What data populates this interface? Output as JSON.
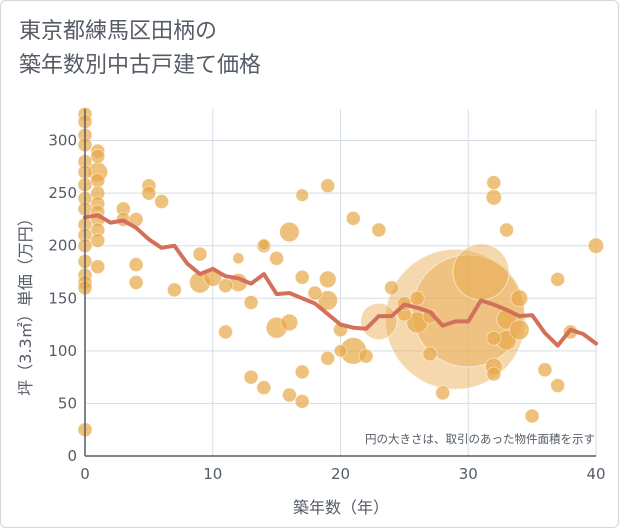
{
  "title_line1": "東京都練馬区田柄の",
  "title_line2": "築年数別中古戸建て価格",
  "annotation": "円の大きさは、取引のあった物件面積を示す",
  "colors": {
    "bubble": "#e8a94b",
    "line": "#d3705a",
    "grid": "#d5dde5",
    "axis": "#555c66"
  },
  "chart_data": {
    "type": "scatter",
    "xlabel": "築年数（年）",
    "ylabel": "坪（3.3㎡）単価（万円）",
    "xlim": [
      0,
      40
    ],
    "ylim": [
      0,
      330
    ],
    "xticks": [
      0,
      10,
      20,
      30,
      40
    ],
    "yticks": [
      0,
      50,
      100,
      150,
      200,
      250,
      300
    ],
    "grid": true,
    "bubbles": [
      {
        "x": 0,
        "y": 325,
        "s": 1
      },
      {
        "x": 0,
        "y": 318,
        "s": 1
      },
      {
        "x": 0,
        "y": 305,
        "s": 1
      },
      {
        "x": 0,
        "y": 296,
        "s": 1
      },
      {
        "x": 0,
        "y": 280,
        "s": 1
      },
      {
        "x": 0,
        "y": 270,
        "s": 1
      },
      {
        "x": 0,
        "y": 258,
        "s": 1
      },
      {
        "x": 0,
        "y": 245,
        "s": 1
      },
      {
        "x": 0,
        "y": 235,
        "s": 1
      },
      {
        "x": 0,
        "y": 220,
        "s": 1
      },
      {
        "x": 0,
        "y": 210,
        "s": 1
      },
      {
        "x": 0,
        "y": 200,
        "s": 1
      },
      {
        "x": 0,
        "y": 185,
        "s": 1
      },
      {
        "x": 0,
        "y": 172,
        "s": 1
      },
      {
        "x": 0,
        "y": 165,
        "s": 1
      },
      {
        "x": 0,
        "y": 160,
        "s": 1
      },
      {
        "x": 0,
        "y": 25,
        "s": 1
      },
      {
        "x": 1,
        "y": 290,
        "s": 1
      },
      {
        "x": 1,
        "y": 285,
        "s": 1
      },
      {
        "x": 1,
        "y": 270,
        "s": 1.4
      },
      {
        "x": 1,
        "y": 262,
        "s": 1
      },
      {
        "x": 1,
        "y": 250,
        "s": 1
      },
      {
        "x": 1,
        "y": 240,
        "s": 1
      },
      {
        "x": 1,
        "y": 232,
        "s": 1
      },
      {
        "x": 1,
        "y": 225,
        "s": 1
      },
      {
        "x": 1,
        "y": 215,
        "s": 1
      },
      {
        "x": 1,
        "y": 205,
        "s": 1
      },
      {
        "x": 1,
        "y": 180,
        "s": 1
      },
      {
        "x": 3,
        "y": 235,
        "s": 1
      },
      {
        "x": 3,
        "y": 225,
        "s": 1
      },
      {
        "x": 4,
        "y": 225,
        "s": 1
      },
      {
        "x": 4,
        "y": 182,
        "s": 1
      },
      {
        "x": 4,
        "y": 165,
        "s": 1
      },
      {
        "x": 5,
        "y": 257,
        "s": 1
      },
      {
        "x": 5,
        "y": 250,
        "s": 1
      },
      {
        "x": 6,
        "y": 242,
        "s": 1
      },
      {
        "x": 7,
        "y": 158,
        "s": 1
      },
      {
        "x": 9,
        "y": 192,
        "s": 1
      },
      {
        "x": 9,
        "y": 165,
        "s": 1.5
      },
      {
        "x": 10,
        "y": 170,
        "s": 1.3
      },
      {
        "x": 11,
        "y": 162,
        "s": 1
      },
      {
        "x": 11,
        "y": 118,
        "s": 1
      },
      {
        "x": 12,
        "y": 188,
        "s": 0.8
      },
      {
        "x": 12,
        "y": 165,
        "s": 1.3
      },
      {
        "x": 13,
        "y": 146,
        "s": 1
      },
      {
        "x": 13,
        "y": 75,
        "s": 1
      },
      {
        "x": 14,
        "y": 200,
        "s": 1
      },
      {
        "x": 14,
        "y": 201,
        "s": 0.8
      },
      {
        "x": 14,
        "y": 65,
        "s": 1
      },
      {
        "x": 15,
        "y": 188,
        "s": 1
      },
      {
        "x": 15,
        "y": 122,
        "s": 1.5
      },
      {
        "x": 16,
        "y": 213,
        "s": 1.4
      },
      {
        "x": 16,
        "y": 127,
        "s": 1.2
      },
      {
        "x": 16,
        "y": 58,
        "s": 1
      },
      {
        "x": 17,
        "y": 248,
        "s": 0.9
      },
      {
        "x": 17,
        "y": 170,
        "s": 1
      },
      {
        "x": 17,
        "y": 80,
        "s": 1
      },
      {
        "x": 17,
        "y": 52,
        "s": 1
      },
      {
        "x": 18,
        "y": 155,
        "s": 1
      },
      {
        "x": 19,
        "y": 257,
        "s": 1
      },
      {
        "x": 19,
        "y": 168,
        "s": 1.2
      },
      {
        "x": 19,
        "y": 148,
        "s": 1.4
      },
      {
        "x": 19,
        "y": 93,
        "s": 1
      },
      {
        "x": 20,
        "y": 120,
        "s": 1
      },
      {
        "x": 20,
        "y": 100,
        "s": 0.9
      },
      {
        "x": 21,
        "y": 226,
        "s": 1
      },
      {
        "x": 21,
        "y": 100,
        "s": 1.9
      },
      {
        "x": 22,
        "y": 95,
        "s": 1
      },
      {
        "x": 23,
        "y": 215,
        "s": 1
      },
      {
        "x": 23,
        "y": 128,
        "s": 2.6
      },
      {
        "x": 24,
        "y": 160,
        "s": 1
      },
      {
        "x": 25,
        "y": 135,
        "s": 1
      },
      {
        "x": 25,
        "y": 145,
        "s": 1
      },
      {
        "x": 26,
        "y": 127,
        "s": 1.5
      },
      {
        "x": 26,
        "y": 150,
        "s": 1
      },
      {
        "x": 27,
        "y": 97,
        "s": 1
      },
      {
        "x": 27,
        "y": 133,
        "s": 1
      },
      {
        "x": 28,
        "y": 60,
        "s": 1
      },
      {
        "x": 29,
        "y": 130,
        "s": 10
      },
      {
        "x": 30,
        "y": 138,
        "s": 8
      },
      {
        "x": 31,
        "y": 175,
        "s": 4
      },
      {
        "x": 32,
        "y": 260,
        "s": 1
      },
      {
        "x": 32,
        "y": 246,
        "s": 1.1
      },
      {
        "x": 32,
        "y": 112,
        "s": 1
      },
      {
        "x": 32,
        "y": 85,
        "s": 1.2
      },
      {
        "x": 32,
        "y": 78,
        "s": 1
      },
      {
        "x": 33,
        "y": 215,
        "s": 1
      },
      {
        "x": 33,
        "y": 110,
        "s": 1.4
      },
      {
        "x": 33,
        "y": 130,
        "s": 1.4
      },
      {
        "x": 34,
        "y": 150,
        "s": 1.2
      },
      {
        "x": 34,
        "y": 120,
        "s": 1.4
      },
      {
        "x": 35,
        "y": 38,
        "s": 1
      },
      {
        "x": 36,
        "y": 82,
        "s": 1
      },
      {
        "x": 37,
        "y": 168,
        "s": 1
      },
      {
        "x": 37,
        "y": 67,
        "s": 1
      },
      {
        "x": 38,
        "y": 118,
        "s": 1
      },
      {
        "x": 40,
        "y": 200,
        "s": 1.1
      }
    ],
    "trend": {
      "x": [
        0,
        1,
        2,
        3,
        4,
        5,
        6,
        7,
        8,
        9,
        10,
        11,
        12,
        13,
        14,
        15,
        16,
        17,
        18,
        19,
        20,
        21,
        22,
        23,
        24,
        25,
        26,
        27,
        28,
        29,
        30,
        31,
        32,
        33,
        34,
        35,
        36,
        37,
        38,
        39,
        40
      ],
      "y": [
        227,
        229,
        222,
        224,
        217,
        206,
        198,
        200,
        183,
        173,
        178,
        171,
        169,
        164,
        173,
        154,
        155,
        150,
        145,
        135,
        125,
        122,
        121,
        133,
        133,
        144,
        141,
        137,
        124,
        128,
        128,
        148,
        144,
        139,
        133,
        134,
        117,
        105,
        120,
        116,
        107
      ]
    }
  }
}
